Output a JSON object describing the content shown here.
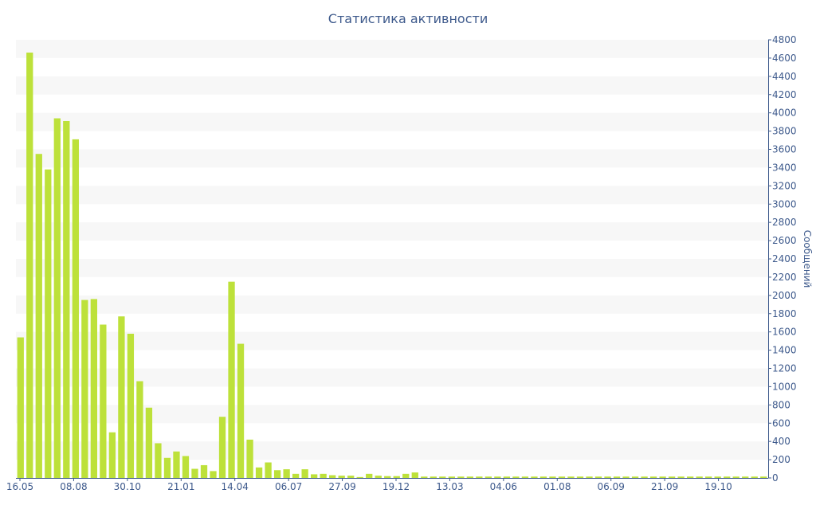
{
  "chart_data": {
    "type": "bar",
    "title": "Статистика активности",
    "ylabel": "Сообщений",
    "xlabel": "",
    "ylim": [
      0,
      4800
    ],
    "y_ticks": [
      0,
      200,
      400,
      600,
      800,
      1000,
      1200,
      1400,
      1600,
      1800,
      2000,
      2200,
      2400,
      2600,
      2800,
      3000,
      3200,
      3400,
      3600,
      3800,
      4000,
      4200,
      4400,
      4600,
      4800
    ],
    "y_axis_side": "right",
    "x_tick_labels": [
      "16.05",
      "08.08",
      "30.10",
      "21.01",
      "14.04",
      "06.07",
      "27.09",
      "19.12",
      "13.03",
      "04.06",
      "01.08",
      "06.09",
      "21.09",
      "19.10"
    ],
    "grid": "horizontal alternating bands",
    "bar_color": "#bde13a",
    "band_color": "#f7f7f7",
    "axis_color": "#3e5a8c",
    "values": [
      1540,
      4660,
      3550,
      3380,
      3940,
      3910,
      3710,
      1950,
      1960,
      1680,
      500,
      1770,
      1580,
      1060,
      770,
      380,
      220,
      290,
      240,
      100,
      140,
      75,
      670,
      2150,
      1470,
      420,
      115,
      170,
      85,
      95,
      45,
      95,
      40,
      45,
      30,
      25,
      25,
      10,
      45,
      25,
      20,
      20,
      45,
      60,
      15,
      15,
      15,
      15,
      15,
      15,
      15,
      15,
      15,
      15,
      15,
      15,
      15,
      15,
      15,
      15,
      15,
      15,
      15,
      15,
      15,
      15,
      15,
      15,
      15,
      15,
      15,
      15,
      15,
      15,
      15,
      15,
      15,
      15,
      15,
      15,
      15,
      15
    ]
  }
}
